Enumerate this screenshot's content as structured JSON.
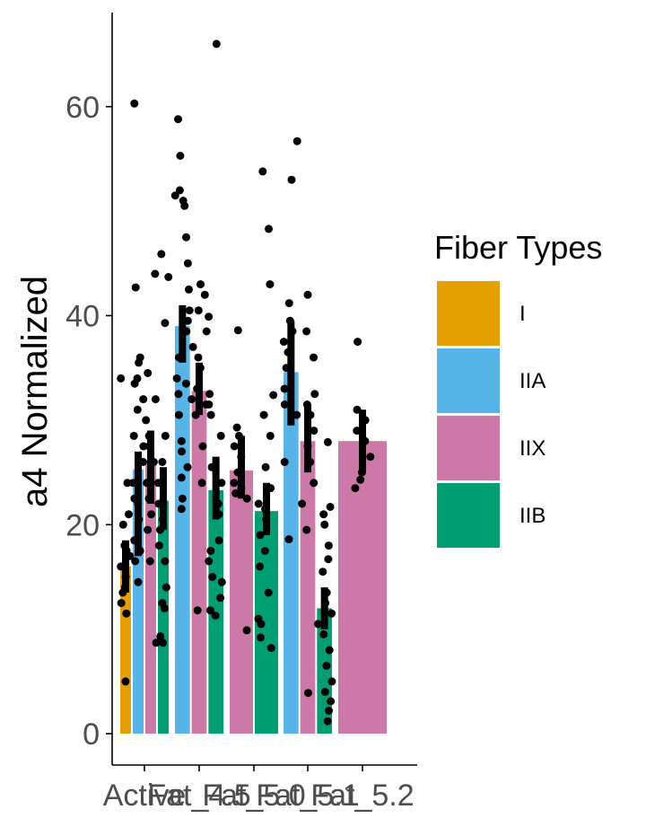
{
  "chart_data": {
    "type": "bar",
    "ylabel": "a4 Normalized",
    "xlabel": "",
    "ylim": [
      -3,
      69
    ],
    "yticks": [
      0,
      20,
      40,
      60
    ],
    "categories": [
      "Active",
      "Fat_4.5",
      "Fat_5.0",
      "Fat_5.1",
      "Fat_5.2"
    ],
    "legend": {
      "title": "Fiber Types",
      "placement": "right",
      "entries": [
        {
          "name": "I",
          "color": "#E69F00"
        },
        {
          "name": "IIA",
          "color": "#56B4E9"
        },
        {
          "name": "IIX",
          "color": "#CC79A7"
        },
        {
          "name": "IIB",
          "color": "#009E73"
        }
      ]
    },
    "groups": [
      {
        "category": "Active",
        "bars": [
          {
            "fiber": "I",
            "value": 16.0,
            "err": [
              13.5,
              18.5
            ],
            "points": [
              5.0,
              11.5,
              12.5,
              13.5,
              14.0,
              15.0,
              16.0,
              17.0,
              17.5,
              18.0,
              20.0,
              21.0,
              24.0,
              34.0
            ]
          },
          {
            "fiber": "IIA",
            "value": 25.3,
            "err": [
              17.0,
              27.0
            ],
            "points": [
              14.5,
              16.5,
              17.5,
              18.5,
              20.5,
              22.0,
              22.5,
              24.0,
              26.0,
              27.5,
              28.5,
              31.0,
              32.0,
              33.5,
              34.0,
              35.5,
              36.0,
              42.7,
              60.3
            ]
          },
          {
            "fiber": "IIX",
            "value": 25.8,
            "err": [
              22.0,
              29.0
            ],
            "points": [
              8.7,
              16.5,
              19.5,
              21.0,
              22.5,
              24.0,
              26.0,
              27.5,
              28.5,
              30.0,
              32.0,
              34.5,
              44.0
            ]
          },
          {
            "fiber": "IIB",
            "value": 22.3,
            "err": [
              19.5,
              25.5
            ],
            "points": [
              8.7,
              9.3,
              12.0,
              12.5,
              14.0,
              16.5,
              18.0,
              19.5,
              20.5,
              22.0,
              24.0,
              26.0,
              28.5,
              39.3,
              43.7,
              45.9
            ]
          }
        ]
      },
      {
        "category": "Fat_4.5",
        "bars": [
          {
            "fiber": "IIA",
            "value": 39.0,
            "err": [
              35.5,
              41.0
            ],
            "points": [
              21.5,
              22.5,
              24.5,
              25.5,
              27.0,
              28.0,
              30.5,
              32.5,
              33.5,
              34.0,
              36.0,
              38.5,
              39.5,
              40.5,
              42.5,
              45.0,
              47.5,
              50.5,
              51.0,
              51.5,
              52.0,
              55.3,
              58.8
            ]
          },
          {
            "fiber": "IIX",
            "value": 32.8,
            "err": [
              30.5,
              35.5
            ],
            "points": [
              11.8,
              24.0,
              27.5,
              30.5,
              31.5,
              32.0,
              33.0,
              35.0,
              36.0,
              37.0,
              38.5,
              40.5,
              42.0,
              43.0
            ]
          },
          {
            "fiber": "IIB",
            "value": 23.3,
            "err": [
              20.5,
              26.5
            ],
            "points": [
              11.3,
              11.8,
              13.0,
              14.5,
              15.0,
              16.5,
              17.5,
              18.5,
              21.0,
              22.0,
              24.0,
              25.5,
              28.5,
              30.5,
              31.5,
              32.5,
              39.9,
              66.0
            ]
          }
        ]
      },
      {
        "category": "Fat_5.0",
        "bars": [
          {
            "fiber": "IIX",
            "value": 25.2,
            "err": [
              22.5,
              28.5
            ],
            "points": [
              9.9,
              22.5,
              23.0,
              23.5,
              24.0,
              25.0,
              26.5,
              27.5,
              28.5,
              29.3,
              38.6
            ]
          },
          {
            "fiber": "IIB",
            "value": 21.3,
            "err": [
              19.0,
              24.0
            ],
            "points": [
              8.2,
              9.2,
              10.5,
              11.0,
              13.5,
              16.0,
              17.5,
              19.0,
              20.5,
              21.5,
              22.0,
              23.5,
              25.5,
              28.5,
              30.5,
              32.4,
              43.0,
              48.3,
              53.8
            ]
          }
        ]
      },
      {
        "category": "Fat_5.1",
        "bars": [
          {
            "fiber": "IIA",
            "value": 34.6,
            "err": [
              29.5,
              39.5
            ],
            "points": [
              18.6,
              26.0,
              30.5,
              31.5,
              33.0,
              35.0,
              36.5,
              37.5,
              38.5,
              39.5,
              41.2,
              53.0,
              56.7
            ]
          },
          {
            "fiber": "IIX",
            "value": 28.0,
            "err": [
              25.0,
              31.5
            ],
            "points": [
              3.9,
              19.5,
              22.0,
              24.0,
              26.0,
              27.5,
              29.0,
              30.5,
              31.5,
              32.5,
              36.0,
              38.5,
              42.0
            ]
          },
          {
            "fiber": "IIB",
            "value": 12.0,
            "err": [
              10.0,
              14.0
            ],
            "points": [
              1.2,
              2.2,
              3.1,
              4.0,
              5.0,
              6.5,
              8.0,
              9.5,
              10.5,
              11.5,
              12.5,
              13.5,
              15.5,
              16.7,
              18.0,
              20.0,
              21.0,
              21.7,
              27.9
            ]
          }
        ]
      },
      {
        "category": "Fat_5.2",
        "bars": [
          {
            "fiber": "IIX",
            "value": 28.0,
            "err": [
              25.0,
              31.0
            ],
            "points": [
              23.5,
              24.3,
              25.0,
              26.5,
              28.0,
              29.0,
              30.0,
              31.0,
              37.5
            ]
          }
        ]
      }
    ]
  }
}
